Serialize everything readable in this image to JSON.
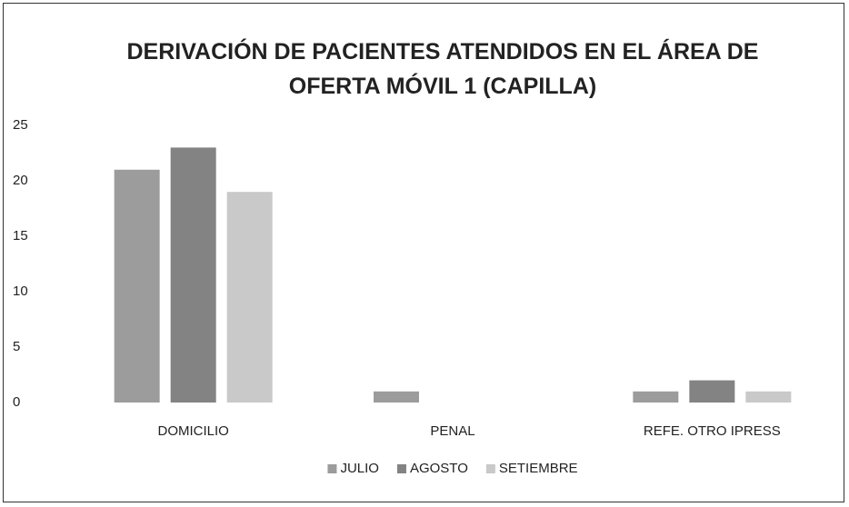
{
  "chart_data": {
    "type": "bar",
    "title": "DERIVACIÓN DE PACIENTES ATENDIDOS EN EL ÁREA DE OFERTA MÓVIL 1 (CAPILLA)",
    "categories": [
      "DOMICILIO",
      "PENAL",
      "REFE. OTRO IPRESS"
    ],
    "series": [
      {
        "name": "JULIO",
        "color": "#9c9c9c",
        "values": [
          21,
          1,
          1
        ]
      },
      {
        "name": "AGOSTO",
        "color": "#838383",
        "values": [
          23,
          0,
          2
        ]
      },
      {
        "name": "SETIEMBRE",
        "color": "#c9c9c9",
        "values": [
          19,
          0,
          1
        ]
      }
    ],
    "ylim": [
      0,
      25
    ],
    "yticks": [
      0,
      5,
      10,
      15,
      20,
      25
    ],
    "grid": false,
    "legend": "bottom"
  }
}
